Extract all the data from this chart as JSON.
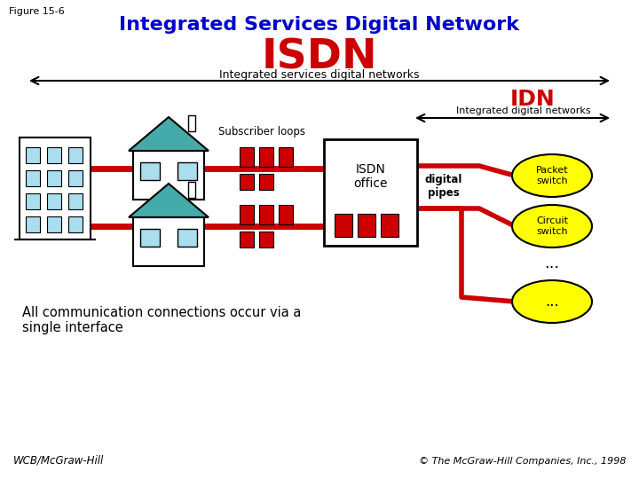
{
  "title": "Integrated Services Digital Network",
  "figure_label": "Figure 15-6",
  "title_color": "#0000CC",
  "title_fontsize": 16,
  "isdn_label": "ISDN",
  "isdn_color": "#CC0000",
  "isdn_fontsize": 34,
  "isdn_sub": "Integrated services digital networks",
  "idn_label": "IDN",
  "idn_color": "#CC0000",
  "idn_fontsize": 18,
  "idn_sub": "Integrated digital networks",
  "subscriber_label": "Subscriber loops",
  "digital_pipes_label": "digital\npipes",
  "isdn_office_label": "ISDN\noffice",
  "packet_switch_label": "Packet\nswitch",
  "circuit_switch_label": "Circuit\nswitch",
  "dots_label": "...",
  "bottom_left_text": "All communication connections occur via a\nsingle interface",
  "wcb_text": "WCB/McGraw-Hill",
  "copyright_text": "© The McGraw-Hill Companies, Inc., 1998",
  "bg_color": "#FFFFFF",
  "red_color": "#CC0000",
  "yellow_color": "#FFFF00",
  "black_color": "#000000",
  "teal_color": "#44AAAA",
  "window_color": "#AADDEE"
}
